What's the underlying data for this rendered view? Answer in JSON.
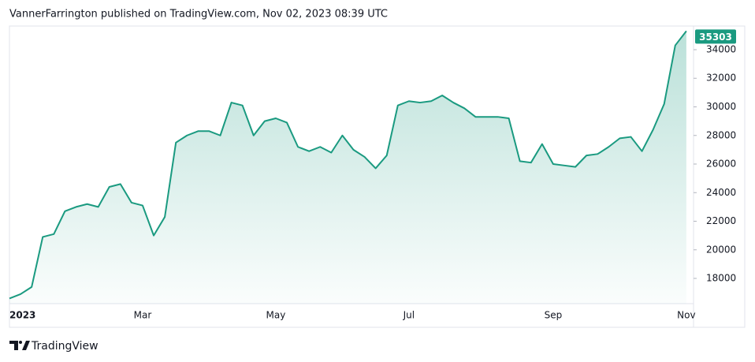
{
  "chart_data": {
    "type": "area",
    "title": "VannerFarrington published on TradingView.com, Nov 02, 2023 08:39 UTC",
    "brand": "TradingView",
    "color": "#1a9a80",
    "categories": [
      "2023",
      null,
      null,
      null,
      null,
      null,
      null,
      null,
      null,
      null,
      null,
      null,
      "Mar",
      null,
      null,
      null,
      null,
      null,
      null,
      null,
      null,
      null,
      null,
      null,
      "May",
      null,
      null,
      null,
      null,
      null,
      null,
      null,
      null,
      null,
      null,
      null,
      "Jul",
      null,
      null,
      null,
      null,
      null,
      null,
      null,
      null,
      null,
      null,
      null,
      null,
      "Sep",
      null,
      null,
      null,
      null,
      null,
      null,
      null,
      null,
      null,
      null,
      null,
      "Nov"
    ],
    "values": [
      16600,
      16900,
      17400,
      20900,
      21100,
      22700,
      23000,
      23200,
      23000,
      24400,
      24600,
      23300,
      23100,
      21000,
      22300,
      27500,
      28000,
      28300,
      28300,
      28000,
      30300,
      30100,
      28000,
      29000,
      29200,
      28900,
      27200,
      26900,
      27200,
      26800,
      28000,
      27000,
      26500,
      25700,
      26600,
      30100,
      30400,
      30300,
      30400,
      30800,
      30300,
      29900,
      29300,
      29300,
      29300,
      29200,
      26200,
      26100,
      27400,
      26000,
      25900,
      25800,
      26600,
      26700,
      27200,
      27800,
      27900,
      26900,
      28400,
      30200,
      34300,
      35303
    ],
    "ylim": [
      16235,
      35655
    ],
    "yticks": [
      18000,
      20000,
      22000,
      24000,
      26000,
      28000,
      30000,
      32000,
      34000
    ],
    "grid": false
  }
}
